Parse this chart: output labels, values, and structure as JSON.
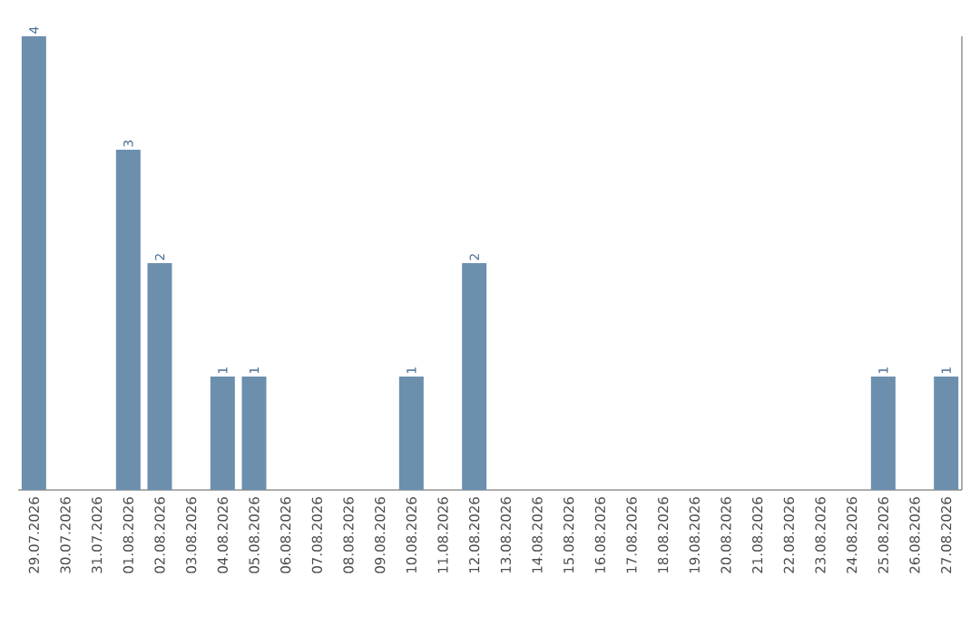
{
  "chart_data": {
    "type": "bar",
    "categories": [
      "29.07.2026",
      "30.07.2026",
      "31.07.2026",
      "01.08.2026",
      "02.08.2026",
      "03.08.2026",
      "04.08.2026",
      "05.08.2026",
      "06.08.2026",
      "07.08.2026",
      "08.08.2026",
      "09.08.2026",
      "10.08.2026",
      "11.08.2026",
      "12.08.2026",
      "13.08.2026",
      "14.08.2026",
      "15.08.2026",
      "16.08.2026",
      "17.08.2026",
      "18.08.2026",
      "19.08.2026",
      "20.08.2026",
      "21.08.2026",
      "22.08.2026",
      "23.08.2026",
      "24.08.2026",
      "25.08.2026",
      "26.08.2026",
      "27.08.2026"
    ],
    "values": [
      4,
      0,
      0,
      3,
      2,
      0,
      1,
      1,
      0,
      0,
      0,
      0,
      1,
      0,
      2,
      0,
      0,
      0,
      0,
      0,
      0,
      0,
      0,
      0,
      0,
      0,
      0,
      1,
      0,
      1
    ],
    "value_labels": [
      "4",
      null,
      null,
      "3",
      "2",
      null,
      "1",
      "1",
      null,
      null,
      null,
      null,
      "1",
      null,
      "2",
      null,
      null,
      null,
      null,
      null,
      null,
      null,
      null,
      null,
      null,
      null,
      null,
      "1",
      null,
      "1"
    ],
    "color": "#6d8fae"
  }
}
